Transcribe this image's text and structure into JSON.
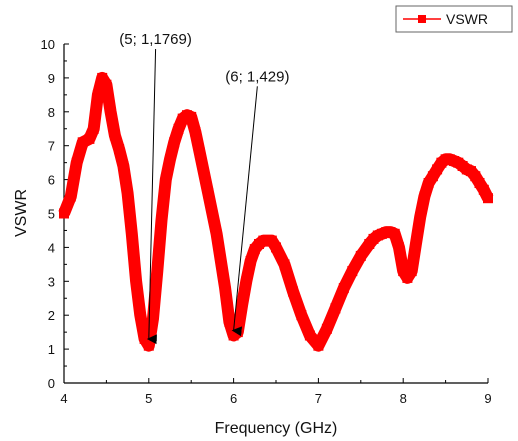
{
  "chart_data": {
    "type": "line",
    "xlabel": "Frequency (GHz)",
    "ylabel": "VSWR",
    "xlim": [
      4,
      9
    ],
    "ylim": [
      0,
      10
    ],
    "x_ticks": [
      4,
      5,
      6,
      7,
      8,
      9
    ],
    "y_ticks": [
      0,
      1,
      2,
      3,
      4,
      5,
      6,
      7,
      8,
      9,
      10
    ],
    "grid": false,
    "legend_position": "top-right",
    "line_color": "#ff0000",
    "series": [
      {
        "name": "VSWR",
        "x": [
          4.0,
          4.08,
          4.15,
          4.22,
          4.3,
          4.35,
          4.4,
          4.45,
          4.5,
          4.55,
          4.6,
          4.65,
          4.7,
          4.75,
          4.8,
          4.85,
          4.9,
          4.95,
          5.0,
          5.05,
          5.1,
          5.15,
          5.2,
          5.25,
          5.3,
          5.35,
          5.4,
          5.45,
          5.5,
          5.55,
          5.6,
          5.7,
          5.8,
          5.9,
          5.95,
          6.0,
          6.05,
          6.1,
          6.15,
          6.2,
          6.25,
          6.3,
          6.35,
          6.4,
          6.45,
          6.5,
          6.6,
          6.7,
          6.8,
          6.9,
          7.0,
          7.1,
          7.2,
          7.3,
          7.4,
          7.5,
          7.6,
          7.65,
          7.7,
          7.75,
          7.8,
          7.85,
          7.9,
          7.95,
          8.0,
          8.05,
          8.1,
          8.15,
          8.2,
          8.25,
          8.3,
          8.35,
          8.4,
          8.45,
          8.5,
          8.55,
          8.6,
          8.65,
          8.7,
          8.75,
          8.8,
          8.85,
          8.9,
          8.95,
          9.0
        ],
        "values": [
          5.0,
          5.5,
          6.5,
          7.1,
          7.2,
          7.5,
          8.5,
          9.0,
          8.8,
          8.0,
          7.3,
          6.9,
          6.4,
          5.6,
          4.4,
          3.0,
          2.0,
          1.3,
          1.1,
          1.9,
          3.3,
          4.8,
          6.0,
          6.6,
          7.1,
          7.5,
          7.8,
          7.9,
          7.85,
          7.4,
          6.8,
          5.6,
          4.4,
          2.8,
          1.8,
          1.4,
          1.5,
          2.3,
          3.0,
          3.6,
          3.95,
          4.1,
          4.2,
          4.2,
          4.2,
          4.0,
          3.5,
          2.7,
          2.0,
          1.4,
          1.1,
          1.6,
          2.2,
          2.8,
          3.3,
          3.75,
          4.1,
          4.25,
          4.35,
          4.4,
          4.45,
          4.45,
          4.4,
          4.0,
          3.3,
          3.1,
          3.3,
          4.1,
          4.9,
          5.5,
          5.9,
          6.1,
          6.3,
          6.5,
          6.6,
          6.6,
          6.55,
          6.5,
          6.4,
          6.3,
          6.25,
          6.1,
          5.9,
          5.7,
          5.45
        ]
      }
    ],
    "annotations": [
      {
        "text": "(5; 1,1769)",
        "x": 5.0,
        "y": 1.1769,
        "label_x": 5.08,
        "label_y": 10.0
      },
      {
        "text": "(6; 1,429)",
        "x": 6.0,
        "y": 1.429,
        "label_x": 6.28,
        "label_y": 8.9
      }
    ]
  }
}
